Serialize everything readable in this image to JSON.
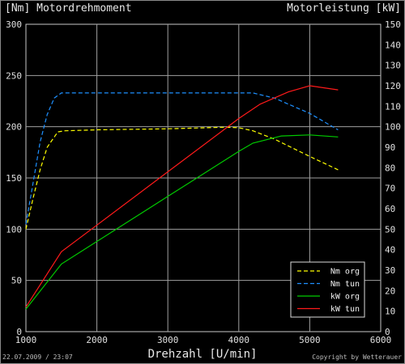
{
  "chart_data": {
    "type": "line",
    "title_left": "[Nm] Motordrehmoment",
    "title_right": "Motorleistung [kW]",
    "xlabel": "Drehzahl [U/min]",
    "footer_left": "22.07.2009 / 23:07",
    "footer_right": "Copyright by Wetterauer",
    "xlim": [
      1000,
      6000
    ],
    "x_ticks": [
      1000,
      2000,
      3000,
      4000,
      5000,
      6000
    ],
    "y_left_lim": [
      0,
      300
    ],
    "y_left_ticks": [
      0,
      50,
      100,
      150,
      200,
      250,
      300
    ],
    "y_right_lim": [
      0,
      150
    ],
    "y_right_ticks": [
      0,
      10,
      20,
      30,
      40,
      50,
      60,
      70,
      80,
      90,
      100,
      110,
      120,
      130,
      140,
      150
    ],
    "grid": true,
    "legend_position": "bottom-right",
    "series": [
      {
        "name": "Nm org",
        "axis": "left",
        "color": "#ffff00",
        "dash": true,
        "points": [
          [
            1000,
            100
          ],
          [
            1100,
            130
          ],
          [
            1200,
            158
          ],
          [
            1300,
            180
          ],
          [
            1450,
            195
          ],
          [
            1550,
            196
          ],
          [
            2000,
            197
          ],
          [
            3000,
            198
          ],
          [
            3800,
            199.5
          ],
          [
            4000,
            199
          ],
          [
            4200,
            196
          ],
          [
            4500,
            188
          ],
          [
            5000,
            171
          ],
          [
            5400,
            158
          ]
        ]
      },
      {
        "name": "Nm tun",
        "axis": "left",
        "color": "#1e90ff",
        "dash": true,
        "points": [
          [
            1000,
            105
          ],
          [
            1100,
            145
          ],
          [
            1200,
            185
          ],
          [
            1300,
            212
          ],
          [
            1400,
            228
          ],
          [
            1500,
            233
          ],
          [
            2000,
            233
          ],
          [
            3000,
            233
          ],
          [
            4000,
            233
          ],
          [
            4200,
            233
          ],
          [
            4500,
            228
          ],
          [
            5000,
            213
          ],
          [
            5400,
            197
          ]
        ]
      },
      {
        "name": "kW org",
        "axis": "right",
        "color": "#00cc00",
        "dash": false,
        "points": [
          [
            1000,
            11
          ],
          [
            1500,
            33
          ],
          [
            2000,
            44
          ],
          [
            3000,
            66
          ],
          [
            4000,
            88
          ],
          [
            4200,
            92
          ],
          [
            4600,
            95.5
          ],
          [
            5000,
            96
          ],
          [
            5400,
            95
          ]
        ]
      },
      {
        "name": "kW tun",
        "axis": "right",
        "color": "#ff1a1a",
        "dash": false,
        "points": [
          [
            1000,
            12
          ],
          [
            1500,
            39
          ],
          [
            2000,
            52
          ],
          [
            3000,
            78
          ],
          [
            4000,
            104
          ],
          [
            4300,
            111
          ],
          [
            4700,
            117
          ],
          [
            5000,
            120
          ],
          [
            5400,
            118
          ]
        ]
      }
    ]
  }
}
